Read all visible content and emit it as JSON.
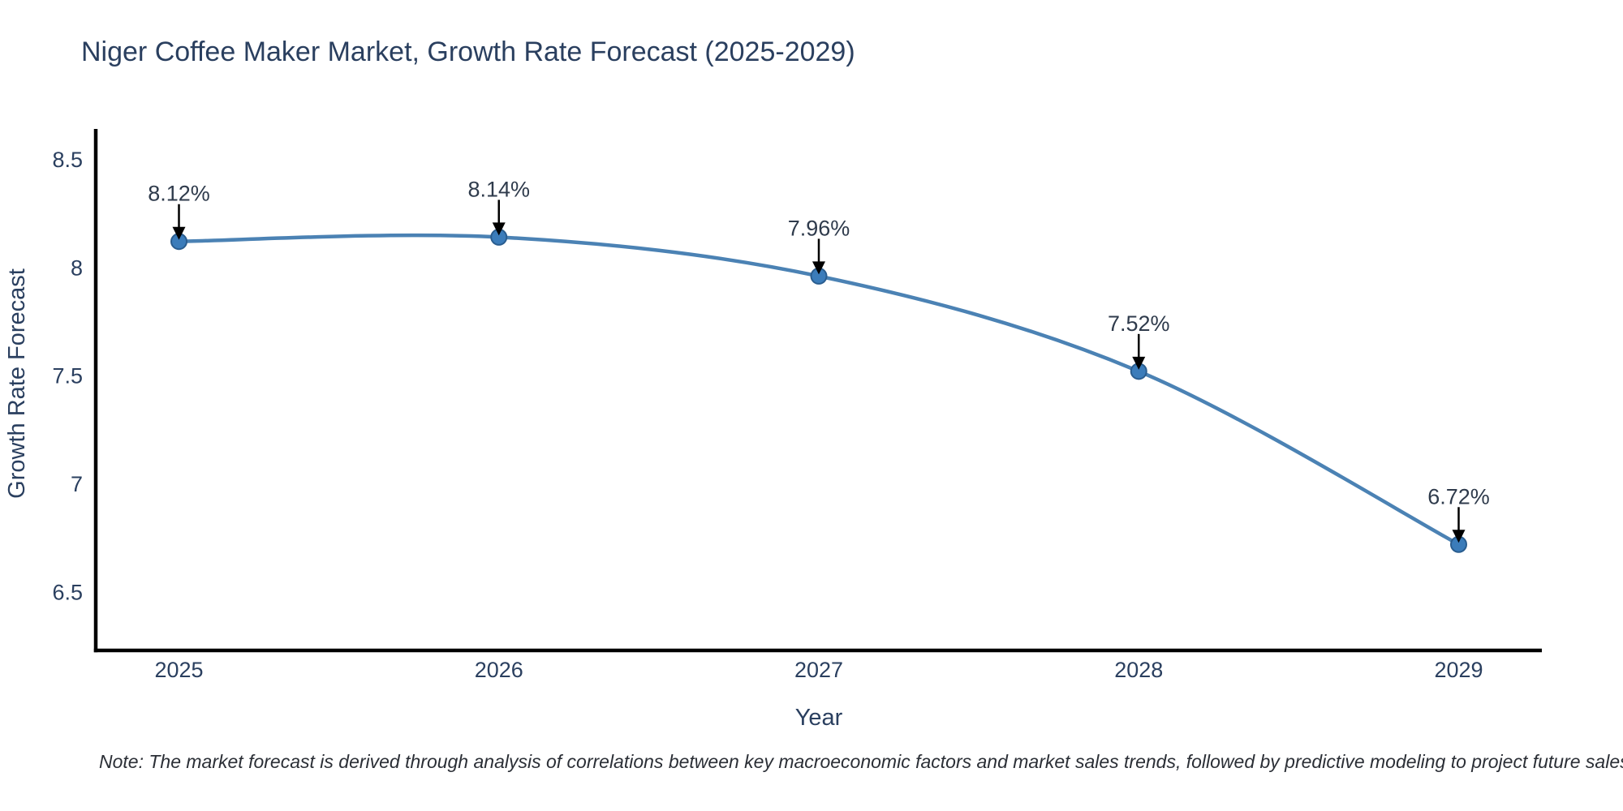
{
  "page": {
    "background": "#ffffff"
  },
  "chart_data": {
    "type": "line",
    "title": "Niger Coffee Maker Market, Growth Rate Forecast (2025-2029)",
    "xlabel": "Year",
    "ylabel": "Growth Rate Forecast",
    "x": [
      2025,
      2026,
      2027,
      2028,
      2029
    ],
    "series": [
      {
        "name": "Growth Rate Forecast",
        "values": [
          8.12,
          8.14,
          7.96,
          7.52,
          6.72
        ],
        "point_labels": [
          "8.12%",
          "8.14%",
          "7.96%",
          "7.52%",
          "6.72%"
        ]
      }
    ],
    "x_tick_labels": [
      "2025",
      "2026",
      "2027",
      "2028",
      "2029"
    ],
    "y_ticks": [
      6.5,
      7,
      7.5,
      8,
      8.5
    ],
    "y_tick_labels": [
      "6.5",
      "7",
      "7.5",
      "8",
      "8.5"
    ],
    "x_range": [
      2024.74,
      2029.26
    ],
    "y_range": [
      6.23,
      8.64
    ],
    "line_shape": "spline",
    "grid": false,
    "legend": "none",
    "colors": {
      "line": "#4b82b4",
      "marker_fill": "#3b7cba",
      "marker_stroke": "#2a5d8f",
      "axis": "#000000",
      "text": "#2a3f5f",
      "annotation_text": "#2f3b4c",
      "annotation_arrow": "#000000"
    }
  },
  "note": {
    "text": "Note: The market forecast is derived through analysis of correlations between key macroeconomic factors and market sales trends, followed by predictive modeling to project future sales"
  }
}
